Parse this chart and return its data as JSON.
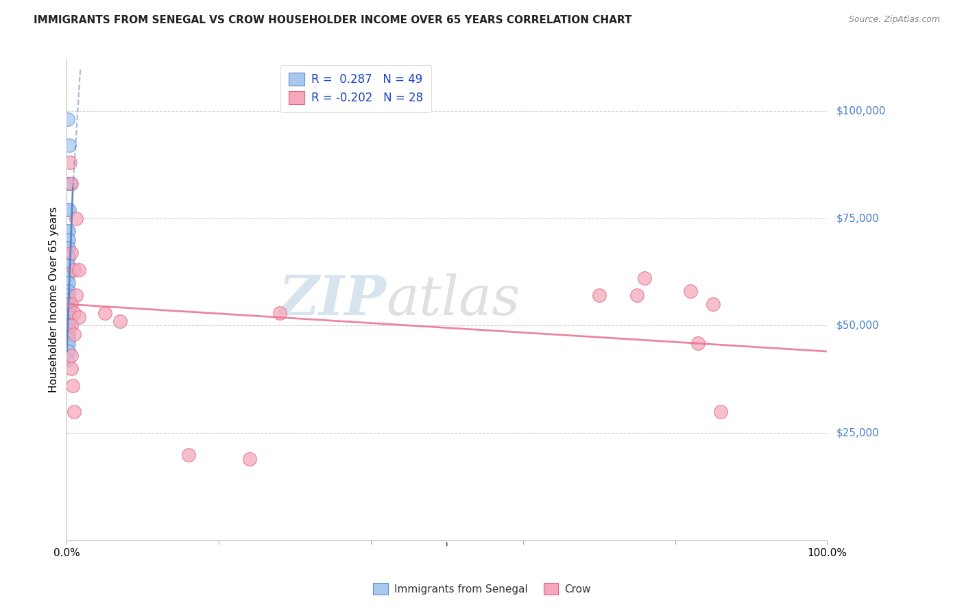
{
  "title": "IMMIGRANTS FROM SENEGAL VS CROW HOUSEHOLDER INCOME OVER 65 YEARS CORRELATION CHART",
  "source": "Source: ZipAtlas.com",
  "ylabel": "Householder Income Over 65 years",
  "y_tick_labels": [
    "$25,000",
    "$50,000",
    "$75,000",
    "$100,000"
  ],
  "y_tick_values": [
    25000,
    50000,
    75000,
    100000
  ],
  "ylim": [
    0,
    112000
  ],
  "xlim": [
    0,
    1.0
  ],
  "legend_label_blue": "Immigrants from Senegal",
  "legend_label_pink": "Crow",
  "R_blue": 0.287,
  "N_blue": 49,
  "R_pink": -0.202,
  "N_pink": 28,
  "watermark": "ZIPatlas",
  "blue_color": "#A8C8F0",
  "pink_color": "#F5A8BC",
  "blue_edge_color": "#6090C8",
  "pink_edge_color": "#E06080",
  "blue_line_color": "#5080C0",
  "pink_line_color": "#E87090",
  "blue_scatter": [
    [
      0.0015,
      98000
    ],
    [
      0.003,
      92000
    ],
    [
      0.002,
      83000
    ],
    [
      0.005,
      83000
    ],
    [
      0.001,
      77000
    ],
    [
      0.003,
      77000
    ],
    [
      0.001,
      72000
    ],
    [
      0.002,
      72000
    ],
    [
      0.001,
      70000
    ],
    [
      0.002,
      70000
    ],
    [
      0.001,
      68000
    ],
    [
      0.002,
      68000
    ],
    [
      0.001,
      66000
    ],
    [
      0.002,
      66000
    ],
    [
      0.001,
      64000
    ],
    [
      0.002,
      64000
    ],
    [
      0.001,
      62000
    ],
    [
      0.002,
      62000
    ],
    [
      0.001,
      60000
    ],
    [
      0.002,
      60000
    ],
    [
      0.001,
      58000
    ],
    [
      0.002,
      58000
    ],
    [
      0.001,
      57000
    ],
    [
      0.002,
      57000
    ],
    [
      0.001,
      56000
    ],
    [
      0.002,
      56000
    ],
    [
      0.001,
      55000
    ],
    [
      0.002,
      55000
    ],
    [
      0.001,
      54000
    ],
    [
      0.002,
      54000
    ],
    [
      0.001,
      53000
    ],
    [
      0.002,
      53000
    ],
    [
      0.001,
      52000
    ],
    [
      0.002,
      52000
    ],
    [
      0.001,
      51000
    ],
    [
      0.002,
      51000
    ],
    [
      0.001,
      50000
    ],
    [
      0.002,
      50000
    ],
    [
      0.001,
      49000
    ],
    [
      0.002,
      49000
    ],
    [
      0.001,
      48000
    ],
    [
      0.002,
      48000
    ],
    [
      0.001,
      47000
    ],
    [
      0.002,
      47000
    ],
    [
      0.001,
      46000
    ],
    [
      0.002,
      46000
    ],
    [
      0.001,
      44000
    ],
    [
      0.002,
      44000
    ],
    [
      0.001,
      42000
    ]
  ],
  "pink_scatter": [
    [
      0.004,
      88000
    ],
    [
      0.006,
      83000
    ],
    [
      0.012,
      75000
    ],
    [
      0.006,
      67000
    ],
    [
      0.01,
      63000
    ],
    [
      0.016,
      63000
    ],
    [
      0.012,
      57000
    ],
    [
      0.006,
      55000
    ],
    [
      0.01,
      53000
    ],
    [
      0.016,
      52000
    ],
    [
      0.006,
      50000
    ],
    [
      0.01,
      48000
    ],
    [
      0.05,
      53000
    ],
    [
      0.07,
      51000
    ],
    [
      0.28,
      53000
    ],
    [
      0.7,
      57000
    ],
    [
      0.75,
      57000
    ],
    [
      0.76,
      61000
    ],
    [
      0.82,
      58000
    ],
    [
      0.85,
      55000
    ],
    [
      0.006,
      43000
    ],
    [
      0.006,
      40000
    ],
    [
      0.008,
      36000
    ],
    [
      0.01,
      30000
    ],
    [
      0.83,
      46000
    ],
    [
      0.86,
      30000
    ],
    [
      0.16,
      20000
    ],
    [
      0.24,
      19000
    ]
  ],
  "blue_line": [
    [
      0.0,
      44000
    ],
    [
      0.008,
      82000
    ]
  ],
  "blue_dashed_line": [
    [
      0.0,
      44000
    ],
    [
      0.018,
      110000
    ]
  ],
  "pink_line": [
    [
      0.0,
      55000
    ],
    [
      1.0,
      44000
    ]
  ]
}
